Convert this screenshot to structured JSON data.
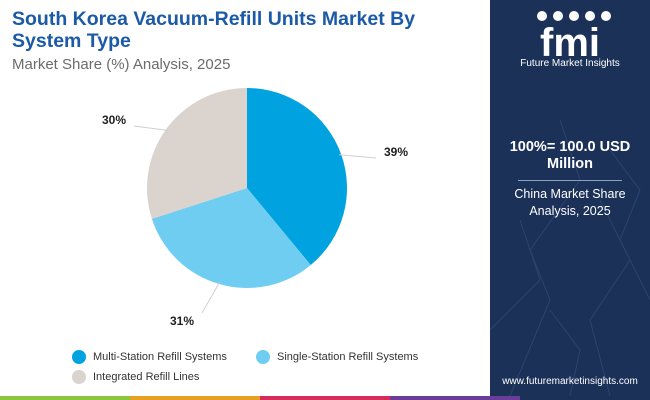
{
  "header": {
    "title": "South Korea Vacuum-Refill Units Market By System Type",
    "subtitle": "Market Share (%) Analysis, 2025"
  },
  "chart_data": {
    "type": "pie",
    "title": "South Korea Vacuum-Refill Units Market By System Type",
    "subtitle": "Market Share (%) Analysis, 2025",
    "categories": [
      "Multi-Station Refill Systems",
      "Single-Station Refill Systems",
      "Integrated Refill Lines"
    ],
    "values": [
      39,
      31,
      30
    ],
    "labels": [
      "39%",
      "31%",
      "30%"
    ],
    "colors": [
      "#00a3e0",
      "#6fcdf2",
      "#dbd3cd"
    ],
    "start_angle_deg": 0,
    "direction": "clockwise",
    "legend_position": "bottom"
  },
  "legend": {
    "items": [
      {
        "label": "Multi-Station Refill Systems",
        "color": "#00a3e0"
      },
      {
        "label": "Single-Station Refill Systems",
        "color": "#6fcdf2"
      },
      {
        "label": "Integrated Refill Lines",
        "color": "#dbd3cd"
      }
    ]
  },
  "sidebar": {
    "logo_text": "fmi",
    "tagline": "Future Market Insights",
    "total_label": "100%= 100.0 USD Million",
    "note": "China Market Share Analysis, 2025",
    "website": "www.futuremarketinsights.com"
  },
  "colors": {
    "title": "#1b5aa6",
    "sidebar_bg": "#1b3158",
    "bottom_bar": [
      "#8cc63f",
      "#e8a020",
      "#d62c5a",
      "#6a3d9a",
      "#1b3158"
    ]
  }
}
